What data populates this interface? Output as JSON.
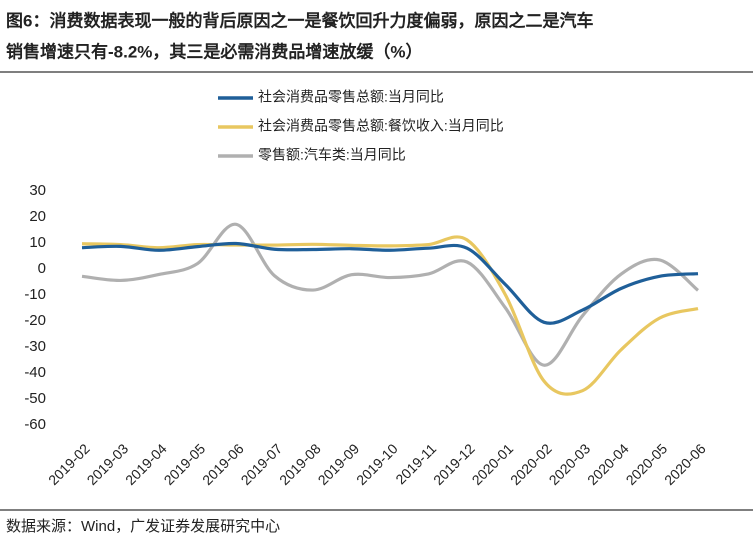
{
  "chart_data": {
    "type": "line",
    "title": [
      "图6：消费数据表现一般的背后原因之一是餐饮回升力度偏弱，原因之二是汽车",
      "销售增速只有-8.2%，其三是必需消费品增速放缓（%）"
    ],
    "source": "数据来源：Wind，广发证券发展研究中心",
    "categories": [
      "2019-02",
      "2019-03",
      "2019-04",
      "2019-05",
      "2019-06",
      "2019-07",
      "2019-08",
      "2019-09",
      "2019-10",
      "2019-11",
      "2019-12",
      "2020-01",
      "2020-02",
      "2020-03",
      "2020-04",
      "2020-05",
      "2020-06"
    ],
    "series": [
      {
        "name": "社会消费品零售总额:当月同比",
        "color": "#1f5f99",
        "values": [
          8.2,
          8.7,
          7.2,
          8.6,
          9.8,
          7.6,
          7.5,
          7.8,
          7.2,
          8.0,
          8.0,
          -6,
          -20.5,
          -15.8,
          -7.5,
          -2.8,
          -1.8
        ]
      },
      {
        "name": "社会消费品零售总额:餐饮收入:当月同比",
        "color": "#e8c760",
        "values": [
          9.7,
          9.4,
          8.2,
          9.4,
          9.2,
          9.2,
          9.5,
          9.1,
          8.9,
          9.4,
          11.2,
          -10,
          -43.1,
          -46.8,
          -31.1,
          -18.9,
          -15.2
        ]
      },
      {
        "name": "零售额:汽车类:当月同比",
        "color": "#b0b0b0",
        "values": [
          -2.8,
          -4.4,
          -2.1,
          2.1,
          17.2,
          -2.6,
          -8.1,
          -2.2,
          -3.3,
          -1.9,
          2.7,
          -15,
          -37,
          -18,
          -2,
          3.5,
          -8.2
        ]
      }
    ],
    "ylim": [
      -60,
      30
    ],
    "yticks": [
      -60,
      -50,
      -40,
      -30,
      -20,
      -10,
      0,
      10,
      20,
      30
    ],
    "grid": false
  }
}
